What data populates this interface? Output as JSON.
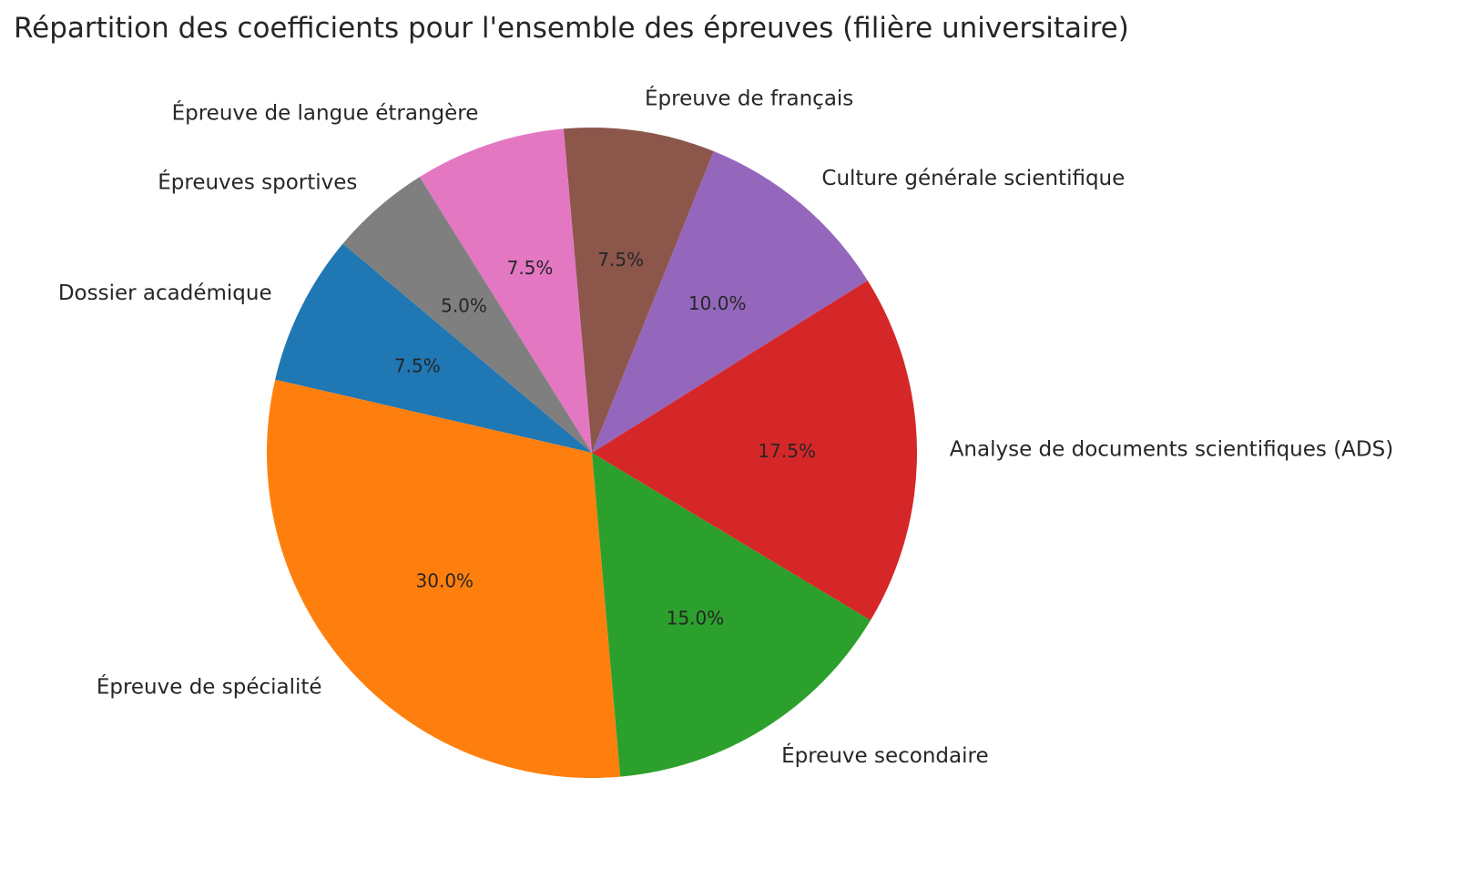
{
  "chart_data": {
    "type": "pie",
    "title": "Répartition des coefficients pour l'ensemble des épreuves (filière universitaire)",
    "categories": [
      "Dossier académique",
      "Épreuve de spécialité",
      "Épreuve secondaire",
      "Analyse de documents scientifiques (ADS)",
      "Culture générale scientifique",
      "Épreuve de français",
      "Épreuve de langue étrangère",
      "Épreuves sportives"
    ],
    "values": [
      7.5,
      30.0,
      15.0,
      17.5,
      10.0,
      7.5,
      7.5,
      5.0
    ],
    "percent_labels": [
      "7.5%",
      "30.0%",
      "15.0%",
      "17.5%",
      "10.0%",
      "7.5%",
      "7.5%",
      "5.0%"
    ],
    "colors": [
      "#1f77b4",
      "#ff7f0e",
      "#2ca02c",
      "#d62728",
      "#9467bd",
      "#8c564b",
      "#e377c2",
      "#7f7f7f"
    ],
    "start_angle_deg": 140,
    "direction": "counterclockwise"
  }
}
